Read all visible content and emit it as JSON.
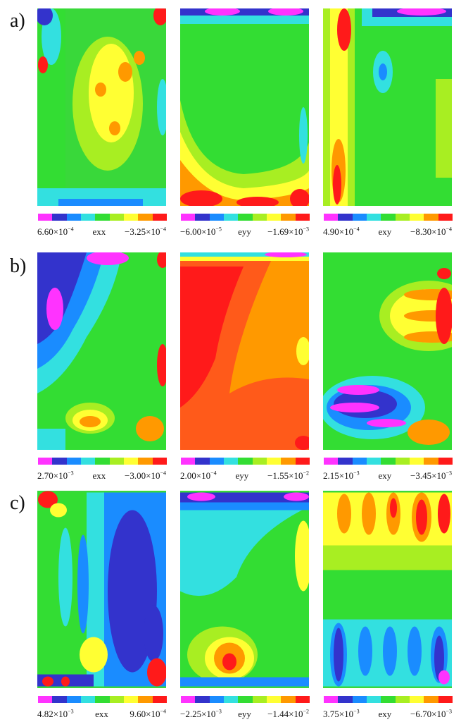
{
  "rows": [
    {
      "label": "a)",
      "panels": [
        {
          "var": "exx",
          "left_base": "6.60×10",
          "left_exp": "−4",
          "right_base": "−3.25×10",
          "right_exp": "−4"
        },
        {
          "var": "eyy",
          "left_base": "−6.00×10",
          "left_exp": "−5",
          "right_base": "−1.69×10",
          "right_exp": "−3"
        },
        {
          "var": "exy",
          "left_base": "4.90×10",
          "left_exp": "−4",
          "right_base": "−8.30×10",
          "right_exp": "−4"
        }
      ]
    },
    {
      "label": "b)",
      "panels": [
        {
          "var": "exx",
          "left_base": "2.70×10",
          "left_exp": "−3",
          "right_base": "−3.00×10",
          "right_exp": "−4"
        },
        {
          "var": "eyy",
          "left_base": "2.00×10",
          "left_exp": "−4",
          "right_base": "−1.55×10",
          "right_exp": "−2"
        },
        {
          "var": "exy",
          "left_base": "2.15×10",
          "left_exp": "−3",
          "right_base": "−3.45×10",
          "right_exp": "−3"
        }
      ]
    },
    {
      "label": "c)",
      "panels": [
        {
          "var": "exx",
          "left_base": "4.82×10",
          "left_exp": "−3",
          "right_base": "9.60×10",
          "right_exp": "−4"
        },
        {
          "var": "eyy",
          "left_base": "−2.25×10",
          "left_exp": "−3",
          "right_base": "−1.44×10",
          "right_exp": "−2"
        },
        {
          "var": "exy",
          "left_base": "3.75×10",
          "left_exp": "−3",
          "right_base": "−6.70×10",
          "right_exp": "−3"
        }
      ]
    }
  ],
  "colormap": [
    "#ff33ff",
    "#3333cc",
    "#1a8cff",
    "#33e0e0",
    "#33dd33",
    "#a8ee22",
    "#ffff33",
    "#ff9900",
    "#ff1a1a"
  ]
}
